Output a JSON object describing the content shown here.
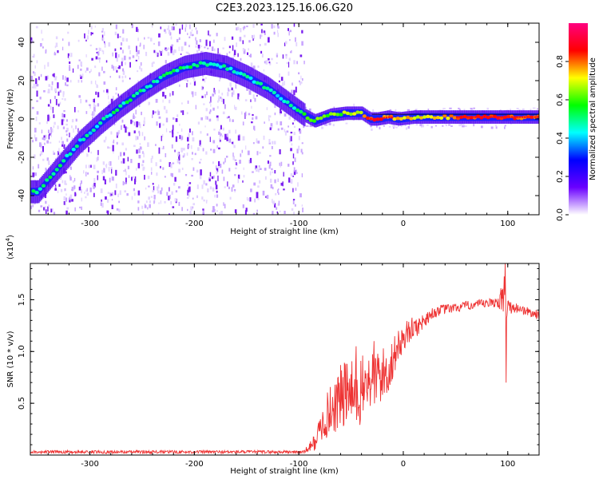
{
  "title": "C2E3.2023.125.16.06.G20",
  "chart_data": [
    {
      "type": "heatmap",
      "name": "spectrogram",
      "xlabel": "Height of straight line (km)",
      "ylabel": "Frequency (Hz)",
      "xlim": [
        -357,
        130
      ],
      "ylim": [
        -50,
        50
      ],
      "xticks": [
        -300,
        -200,
        -100,
        0,
        100
      ],
      "xtick_labels": [
        "-300",
        "-200",
        "-100",
        "0",
        "100"
      ],
      "yticks": [
        -40,
        -20,
        0,
        20,
        40
      ],
      "ytick_labels": [
        "-40",
        "-20",
        "0",
        "20",
        "40"
      ],
      "noise_region_xlim": [
        -357,
        -95
      ],
      "noise_region_ylim": [
        -50,
        50
      ],
      "colorbar": {
        "label": "Normalized spectral amplitude",
        "range": [
          0,
          1
        ],
        "ticks": [
          0.0,
          0.2,
          0.4,
          0.6,
          0.8
        ],
        "tick_labels": [
          "0.0",
          "0.2",
          "0.4",
          "0.6",
          "0.8"
        ],
        "colors": [
          "#ffffff",
          "#6a00ff",
          "#0000ff",
          "#00ffff",
          "#00ff00",
          "#ffff00",
          "#ff0000",
          "#ff0080"
        ]
      },
      "ridge": {
        "x": [
          -350,
          -330,
          -310,
          -290,
          -270,
          -250,
          -230,
          -210,
          -190,
          -170,
          -150,
          -130,
          -110,
          -95,
          -85,
          -70,
          -55,
          -40,
          -32,
          -25,
          -15,
          -5,
          10,
          40,
          70,
          100,
          130
        ],
        "y": [
          -38,
          -25,
          -12,
          -2,
          7,
          15,
          22,
          27,
          29,
          27,
          22,
          16,
          8,
          2,
          -1,
          2,
          3,
          3,
          0,
          0,
          1,
          0,
          1,
          1,
          1,
          1,
          1
        ],
        "amplitude": [
          0.5,
          0.5,
          0.45,
          0.45,
          0.5,
          0.5,
          0.5,
          0.5,
          0.5,
          0.45,
          0.45,
          0.45,
          0.45,
          0.55,
          0.6,
          0.6,
          0.65,
          0.7,
          0.85,
          0.85,
          0.8,
          0.75,
          0.7,
          0.75,
          0.85,
          0.85,
          0.8
        ]
      }
    },
    {
      "type": "line",
      "name": "snr",
      "xlabel": "Height of straight line (km)",
      "ylabel": "SNR (10 * v/v)",
      "multiplier_label": "(x10",
      "multiplier_exponent": "4",
      "multiplier_close": ")",
      "xlim": [
        -357,
        130
      ],
      "ylim": [
        0,
        18500
      ],
      "xticks": [
        -300,
        -200,
        -100,
        0,
        100
      ],
      "xtick_labels": [
        "-300",
        "-200",
        "-100",
        "0",
        "100"
      ],
      "yticks": [
        5000,
        10000,
        15000
      ],
      "ytick_labels": [
        "0.5",
        "1.0",
        "1.5"
      ],
      "color": "#ee3333",
      "x": [
        -357,
        -300,
        -250,
        -200,
        -150,
        -110,
        -95,
        -85,
        -75,
        -65,
        -55,
        -45,
        -35,
        -25,
        -15,
        -5,
        5,
        15,
        25,
        35,
        50,
        65,
        80,
        90,
        97,
        100,
        110,
        120,
        130
      ],
      "y": [
        300,
        300,
        300,
        300,
        300,
        300,
        300,
        1200,
        3500,
        5000,
        6000,
        5500,
        7000,
        7500,
        8000,
        10500,
        12000,
        12500,
        13500,
        14000,
        14200,
        14500,
        14600,
        14800,
        15000,
        14300,
        14200,
        13800,
        13500
      ],
      "spread": [
        150,
        150,
        150,
        150,
        150,
        150,
        150,
        800,
        2000,
        3000,
        3500,
        3500,
        3000,
        3000,
        2500,
        1500,
        1200,
        900,
        600,
        500,
        450,
        450,
        450,
        500,
        2500,
        700,
        450,
        450,
        450
      ],
      "spikes": [
        {
          "x": 97.5,
          "y": 18500
        },
        {
          "x": 98.5,
          "y": 7000
        },
        {
          "x": -45,
          "y": 10500
        },
        {
          "x": -28,
          "y": 11000
        }
      ]
    }
  ]
}
